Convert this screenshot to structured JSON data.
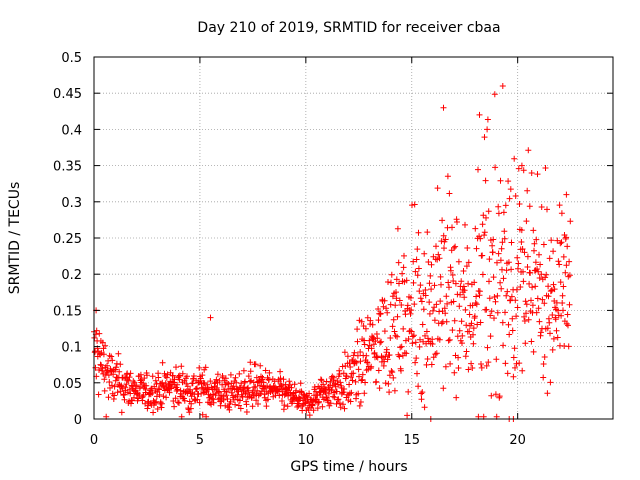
{
  "chart_data": {
    "type": "scatter",
    "title": "Day 210 of 2019, SRMTID for receiver cbaa",
    "xlabel": "GPS time / hours",
    "ylabel": "SRMTID / TECUs",
    "xlim": [
      0,
      24.5
    ],
    "ylim": [
      0,
      0.5
    ],
    "grid": true,
    "marker": "+",
    "color": "#ff0000",
    "xticks": [
      0,
      5,
      10,
      15,
      20
    ],
    "xtick_labels": [
      "0",
      "5",
      "10",
      "15",
      "20"
    ],
    "yticks": [
      0,
      0.05,
      0.1,
      0.15,
      0.2,
      0.25,
      0.3,
      0.35,
      0.4,
      0.45,
      0.5
    ],
    "ytick_labels": [
      "0",
      "0.05",
      "0.1",
      "0.15",
      "0.2",
      "0.25",
      "0.3",
      "0.35",
      "0.4",
      "0.45",
      "0.5"
    ],
    "series": [
      {
        "name": "SRMTID",
        "profile_x": [
          0,
          0.3,
          0.8,
          1.5,
          2.5,
          3.5,
          4.5,
          5.5,
          6.5,
          7.5,
          8.5,
          9.5,
          10.0,
          10.5,
          11.0,
          12.0,
          12.7,
          13.5,
          14.5,
          15.5,
          16.5,
          17.5,
          18.5,
          19.5,
          20.5,
          21.5,
          22.5
        ],
        "profile_median": [
          0.09,
          0.08,
          0.055,
          0.045,
          0.035,
          0.045,
          0.04,
          0.04,
          0.035,
          0.045,
          0.04,
          0.03,
          0.02,
          0.03,
          0.04,
          0.05,
          0.08,
          0.11,
          0.13,
          0.15,
          0.17,
          0.15,
          0.18,
          0.2,
          0.18,
          0.17,
          0.19
        ],
        "profile_spread": [
          0.03,
          0.03,
          0.02,
          0.015,
          0.012,
          0.015,
          0.015,
          0.015,
          0.012,
          0.015,
          0.012,
          0.01,
          0.008,
          0.01,
          0.012,
          0.02,
          0.03,
          0.035,
          0.05,
          0.06,
          0.07,
          0.06,
          0.08,
          0.08,
          0.07,
          0.05,
          0.05
        ],
        "notable_points": [
          [
            0.1,
            0.15
          ],
          [
            5.5,
            0.14
          ],
          [
            15.9,
            0.0
          ],
          [
            16.5,
            0.43
          ],
          [
            18.2,
            0.42
          ],
          [
            19.3,
            0.46
          ],
          [
            19.6,
            0.0
          ],
          [
            19.8,
            0.0
          ],
          [
            20.2,
            0.35
          ],
          [
            22.3,
            0.31
          ]
        ]
      }
    ]
  }
}
